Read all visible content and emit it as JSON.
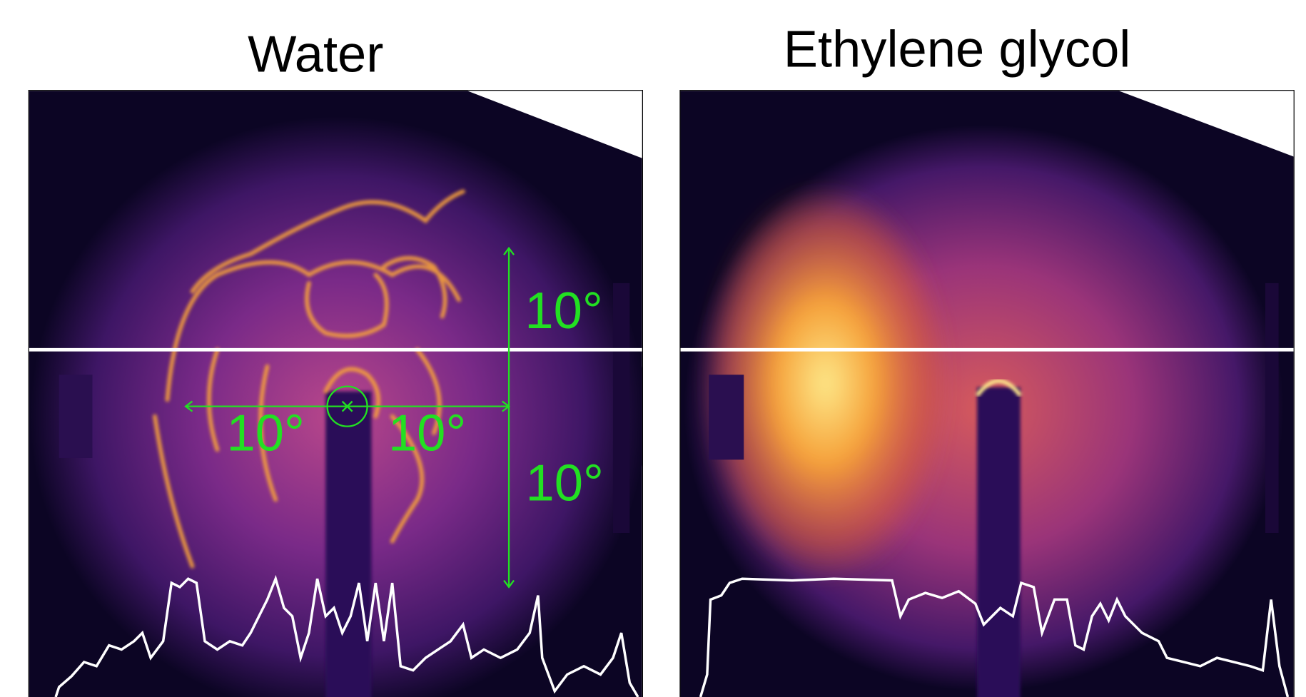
{
  "panels": [
    {
      "title": "Water",
      "annotations": [
        "10°",
        "10°",
        "10°",
        "10°"
      ]
    },
    {
      "title": "Ethylene glycol"
    }
  ]
}
